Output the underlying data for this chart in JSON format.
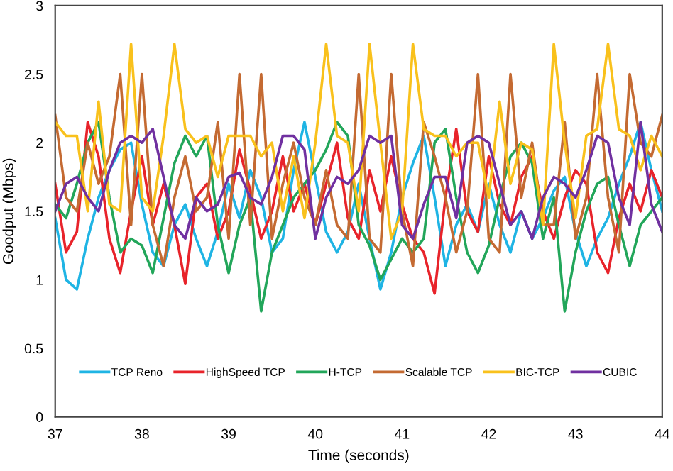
{
  "chart_data": {
    "type": "line",
    "xlabel": "Time (seconds)",
    "ylabel": "Goodput (Mbps)",
    "x": [
      37,
      37.125,
      37.25,
      37.375,
      37.5,
      37.625,
      37.75,
      37.875,
      38,
      38.125,
      38.25,
      38.375,
      38.5,
      38.625,
      38.75,
      38.875,
      39,
      39.125,
      39.25,
      39.375,
      39.5,
      39.625,
      39.75,
      39.875,
      40,
      40.125,
      40.25,
      40.375,
      40.5,
      40.625,
      40.75,
      40.875,
      41,
      41.125,
      41.25,
      41.375,
      41.5,
      41.625,
      41.75,
      41.875,
      42,
      42.125,
      42.25,
      42.375,
      42.5,
      42.625,
      42.75,
      42.875,
      43,
      43.125,
      43.25,
      43.375,
      43.5,
      43.625,
      43.75,
      43.875,
      44
    ],
    "xlim": [
      37,
      44
    ],
    "xticks": [
      37,
      38,
      39,
      40,
      41,
      42,
      43,
      44
    ],
    "ylim": [
      0,
      3
    ],
    "yticks": [
      0,
      0.5,
      1,
      1.5,
      2,
      2.5,
      3
    ],
    "grid": false,
    "legend": "bottom",
    "marker": "none",
    "line_style": "solid",
    "series": [
      {
        "name": "TCP Reno",
        "color": "#1fb4e4",
        "values": [
          1.45,
          1.0,
          0.93,
          1.3,
          1.6,
          1.8,
          1.95,
          2.0,
          1.55,
          1.2,
          1.1,
          1.4,
          1.55,
          1.3,
          1.1,
          1.35,
          1.7,
          1.45,
          1.8,
          1.6,
          1.2,
          1.3,
          1.8,
          2.15,
          1.75,
          1.35,
          1.2,
          1.35,
          1.7,
          1.3,
          0.93,
          1.2,
          1.6,
          1.85,
          2.05,
          1.6,
          1.1,
          1.4,
          1.55,
          1.35,
          1.7,
          1.4,
          1.2,
          1.5,
          1.3,
          1.45,
          1.65,
          1.75,
          1.35,
          1.1,
          1.3,
          1.45,
          1.7,
          1.9,
          2.15,
          1.8,
          1.5
        ]
      },
      {
        "name": "HighSpeed TCP",
        "color": "#e8232a",
        "values": [
          1.7,
          1.2,
          1.35,
          2.15,
          1.9,
          1.3,
          1.05,
          1.5,
          1.9,
          1.4,
          1.7,
          1.4,
          0.97,
          1.6,
          1.7,
          1.3,
          1.5,
          1.95,
          1.65,
          1.3,
          1.5,
          1.9,
          1.5,
          1.7,
          1.4,
          1.7,
          2.0,
          1.45,
          1.3,
          1.8,
          1.5,
          1.9,
          1.55,
          1.3,
          1.2,
          0.9,
          1.6,
          2.1,
          1.5,
          1.35,
          1.9,
          1.55,
          1.4,
          1.75,
          1.9,
          1.5,
          1.3,
          1.6,
          1.8,
          1.7,
          1.2,
          1.05,
          1.45,
          1.7,
          1.5,
          1.8,
          1.6
        ]
      },
      {
        "name": "H-TCP",
        "color": "#22a65a",
        "values": [
          1.55,
          1.45,
          1.7,
          2.0,
          2.15,
          1.6,
          1.2,
          1.3,
          1.25,
          1.05,
          1.45,
          1.85,
          2.05,
          1.9,
          2.05,
          1.4,
          1.05,
          1.4,
          1.6,
          0.77,
          1.2,
          1.4,
          1.6,
          1.7,
          1.8,
          1.95,
          2.15,
          2.05,
          1.4,
          1.25,
          1.0,
          1.15,
          1.3,
          1.2,
          1.3,
          2.0,
          2.1,
          1.6,
          1.2,
          1.05,
          1.25,
          1.6,
          1.9,
          2.0,
          1.85,
          1.3,
          1.6,
          0.77,
          1.2,
          1.5,
          1.7,
          1.75,
          1.4,
          1.1,
          1.4,
          1.5,
          1.6
        ]
      },
      {
        "name": "Scalable TCP",
        "color": "#c46a32",
        "values": [
          2.2,
          1.6,
          1.5,
          2.0,
          1.7,
          1.9,
          2.5,
          1.4,
          2.5,
          1.4,
          1.1,
          1.6,
          1.9,
          1.5,
          1.6,
          2.15,
          1.3,
          2.5,
          1.4,
          2.5,
          1.3,
          1.7,
          2.0,
          1.6,
          1.4,
          1.8,
          1.4,
          1.3,
          2.5,
          1.3,
          1.2,
          2.5,
          1.5,
          1.1,
          2.15,
          1.9,
          1.6,
          1.2,
          1.5,
          2.5,
          1.3,
          1.2,
          2.5,
          1.6,
          2.0,
          1.4,
          1.4,
          2.15,
          1.3,
          1.6,
          2.5,
          1.6,
          1.2,
          2.5,
          2.0,
          1.9,
          2.2
        ]
      },
      {
        "name": "BIC-TCP",
        "color": "#f9c11c",
        "values": [
          2.15,
          2.05,
          2.05,
          1.5,
          2.3,
          1.55,
          1.5,
          2.72,
          1.6,
          1.5,
          2.05,
          2.72,
          2.1,
          2.0,
          2.05,
          1.75,
          2.05,
          2.05,
          2.05,
          1.9,
          2.0,
          1.5,
          1.9,
          1.45,
          2.0,
          2.72,
          2.05,
          2.0,
          1.5,
          2.72,
          2.0,
          1.3,
          1.5,
          2.72,
          2.1,
          2.05,
          2.05,
          1.9,
          2.0,
          2.0,
          1.6,
          2.3,
          1.7,
          2.0,
          1.95,
          1.4,
          2.72,
          2.0,
          1.45,
          2.05,
          2.1,
          2.72,
          2.1,
          2.05,
          1.8,
          2.05,
          1.9
        ]
      },
      {
        "name": "CUBIC",
        "color": "#7030a0",
        "values": [
          1.5,
          1.7,
          1.75,
          1.6,
          1.5,
          1.8,
          2.0,
          2.05,
          2.0,
          2.1,
          1.75,
          1.4,
          1.3,
          1.6,
          1.5,
          1.55,
          1.75,
          1.78,
          1.6,
          1.55,
          1.75,
          2.05,
          2.05,
          1.95,
          1.3,
          1.6,
          1.75,
          1.7,
          1.8,
          2.05,
          2.0,
          2.05,
          1.4,
          1.3,
          1.55,
          1.75,
          1.75,
          1.45,
          2.0,
          2.05,
          2.0,
          1.7,
          1.4,
          1.5,
          1.3,
          1.6,
          1.75,
          1.7,
          1.6,
          1.8,
          2.05,
          2.0,
          1.6,
          1.4,
          2.15,
          1.55,
          1.35
        ]
      }
    ]
  }
}
